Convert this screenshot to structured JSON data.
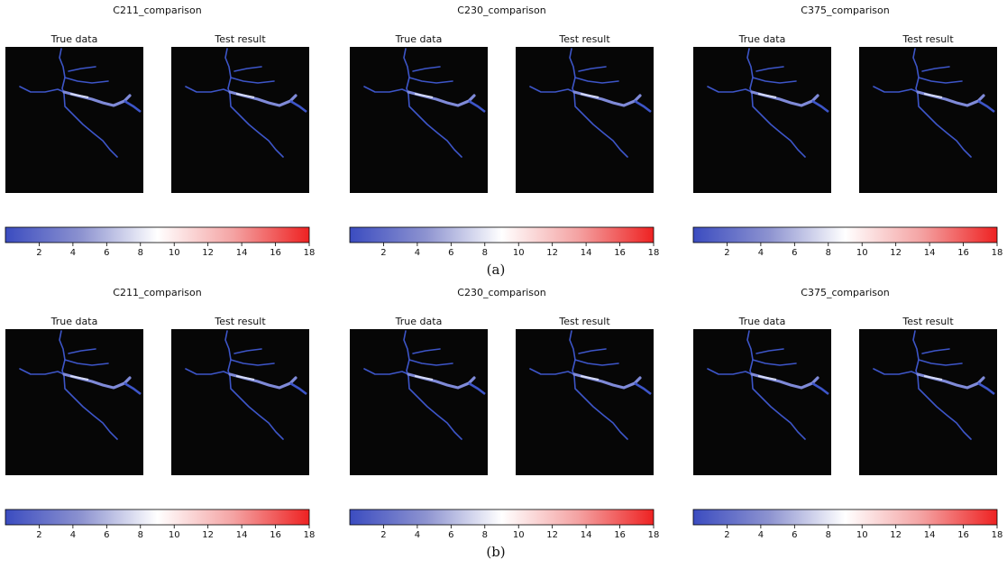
{
  "panels": [
    {
      "label": "(a)",
      "groups": [
        {
          "title": "C211_comparison",
          "subplots": [
            "True data",
            "Test result"
          ]
        },
        {
          "title": "C230_comparison",
          "subplots": [
            "True data",
            "Test result"
          ]
        },
        {
          "title": "C375_comparison",
          "subplots": [
            "True data",
            "Test result"
          ]
        }
      ]
    },
    {
      "label": "(b)",
      "groups": [
        {
          "title": "C211_comparison",
          "subplots": [
            "True data",
            "Test result"
          ]
        },
        {
          "title": "C230_comparison",
          "subplots": [
            "True data",
            "Test result"
          ]
        },
        {
          "title": "C375_comparison",
          "subplots": [
            "True data",
            "Test result"
          ]
        }
      ]
    }
  ],
  "colorbar": {
    "lim": [
      0,
      18
    ],
    "ticks": [
      2,
      4,
      6,
      8,
      10,
      12,
      14,
      16,
      18
    ],
    "colors": [
      "#3b4cc0",
      "#8d93d0",
      "#ffffff",
      "#f4a3a3",
      "#ee2222"
    ]
  }
}
